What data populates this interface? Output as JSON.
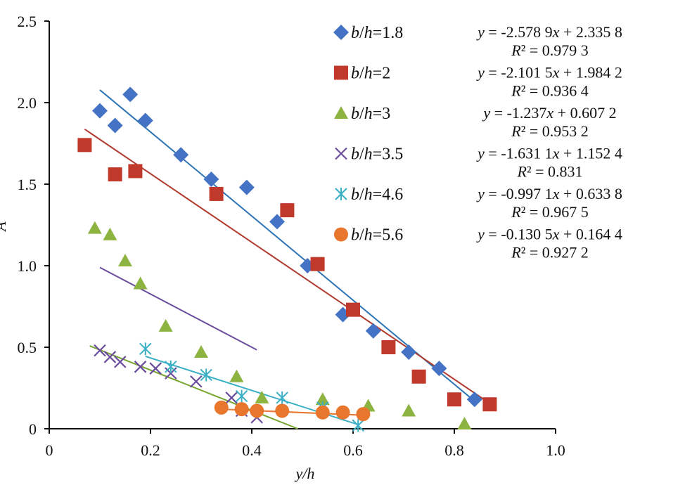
{
  "chart_data": {
    "type": "scatter",
    "xlabel": "y/h",
    "ylabel": "A",
    "xlim": [
      0,
      1.0
    ],
    "ylim": [
      0,
      2.5
    ],
    "x_ticks": [
      "0",
      "0.2",
      "0.4",
      "0.6",
      "0.8",
      "1.0"
    ],
    "y_ticks": [
      "0",
      "0.5",
      "1.0",
      "1.5",
      "2.0",
      "2.5"
    ],
    "grid": false,
    "legend_placement": "top-right",
    "series": [
      {
        "name": "b/h=1.8",
        "marker": "diamond",
        "color": "#4472C4",
        "line_color": "#2E75B6",
        "points": [
          [
            0.1,
            1.95
          ],
          [
            0.13,
            1.86
          ],
          [
            0.16,
            2.05
          ],
          [
            0.19,
            1.89
          ],
          [
            0.26,
            1.68
          ],
          [
            0.32,
            1.53
          ],
          [
            0.39,
            1.48
          ],
          [
            0.45,
            1.27
          ],
          [
            0.51,
            1.0
          ],
          [
            0.58,
            0.7
          ],
          [
            0.64,
            0.6
          ],
          [
            0.71,
            0.47
          ],
          [
            0.77,
            0.37
          ],
          [
            0.84,
            0.18
          ]
        ],
        "fit_x": [
          0.1,
          0.84
        ],
        "equation": "y = -2.578 9x + 2.335 8",
        "r2": "R² = 0.979 3"
      },
      {
        "name": "b/h=2",
        "marker": "square",
        "color": "#C0392B",
        "line_color": "#B03A2E",
        "points": [
          [
            0.07,
            1.74
          ],
          [
            0.13,
            1.56
          ],
          [
            0.17,
            1.58
          ],
          [
            0.33,
            1.44
          ],
          [
            0.47,
            1.34
          ],
          [
            0.53,
            1.01
          ],
          [
            0.6,
            0.73
          ],
          [
            0.67,
            0.5
          ],
          [
            0.73,
            0.32
          ],
          [
            0.8,
            0.18
          ],
          [
            0.87,
            0.15
          ]
        ],
        "fit_x": [
          0.07,
          0.87
        ],
        "equation": "y = -2.101 5x + 1.984 2",
        "r2": "R² = 0.936 4"
      },
      {
        "name": "b/h=3",
        "marker": "triangle",
        "color": "#8DB341",
        "line_color": "#77A530",
        "points": [
          [
            0.09,
            1.23
          ],
          [
            0.12,
            1.19
          ],
          [
            0.15,
            1.03
          ],
          [
            0.18,
            0.89
          ],
          [
            0.23,
            0.63
          ],
          [
            0.3,
            0.47
          ],
          [
            0.37,
            0.32
          ],
          [
            0.42,
            0.19
          ],
          [
            0.54,
            0.18
          ],
          [
            0.63,
            0.14
          ],
          [
            0.71,
            0.11
          ],
          [
            0.82,
            0.03
          ]
        ],
        "fit_x": [
          0.08,
          0.7
        ],
        "equation": "y = -1.237x + 0.607 2",
        "r2": "R² = 0.953 2"
      },
      {
        "name": "b/h=3.5",
        "marker": "x",
        "color": "#6A4C9C",
        "line_color": "#6A4C9C",
        "points": [
          [
            0.1,
            0.48
          ],
          [
            0.12,
            0.44
          ],
          [
            0.14,
            0.41
          ],
          [
            0.18,
            0.38
          ],
          [
            0.21,
            0.37
          ],
          [
            0.24,
            0.34
          ],
          [
            0.29,
            0.29
          ],
          [
            0.36,
            0.19
          ],
          [
            0.38,
            0.11
          ],
          [
            0.41,
            0.07
          ]
        ],
        "fit_x": [
          0.1,
          0.41
        ],
        "equation": "y = -1.631 1x + 1.152 4",
        "r2": "R² = 0.831"
      },
      {
        "name": "b/h=4.6",
        "marker": "asterisk",
        "color": "#3AAFC5",
        "line_color": "#3AAFC5",
        "points": [
          [
            0.19,
            0.49
          ],
          [
            0.24,
            0.38
          ],
          [
            0.31,
            0.33
          ],
          [
            0.38,
            0.2
          ],
          [
            0.46,
            0.19
          ],
          [
            0.54,
            0.13
          ],
          [
            0.61,
            0.02
          ]
        ],
        "fit_x": [
          0.19,
          0.61
        ],
        "equation": "y = -0.997 1x + 0.633 8",
        "r2": "R² = 0.967 5"
      },
      {
        "name": "b/h=5.6",
        "marker": "circle",
        "color": "#E8762D",
        "line_color": "#E8762D",
        "points": [
          [
            0.34,
            0.13
          ],
          [
            0.38,
            0.12
          ],
          [
            0.41,
            0.11
          ],
          [
            0.46,
            0.11
          ],
          [
            0.54,
            0.1
          ],
          [
            0.58,
            0.1
          ],
          [
            0.62,
            0.09
          ]
        ],
        "fit_x": [
          0.34,
          0.62
        ],
        "equation": "y = -0.130 5x + 0.164 4",
        "r2": "R² = 0.927 2"
      }
    ]
  }
}
